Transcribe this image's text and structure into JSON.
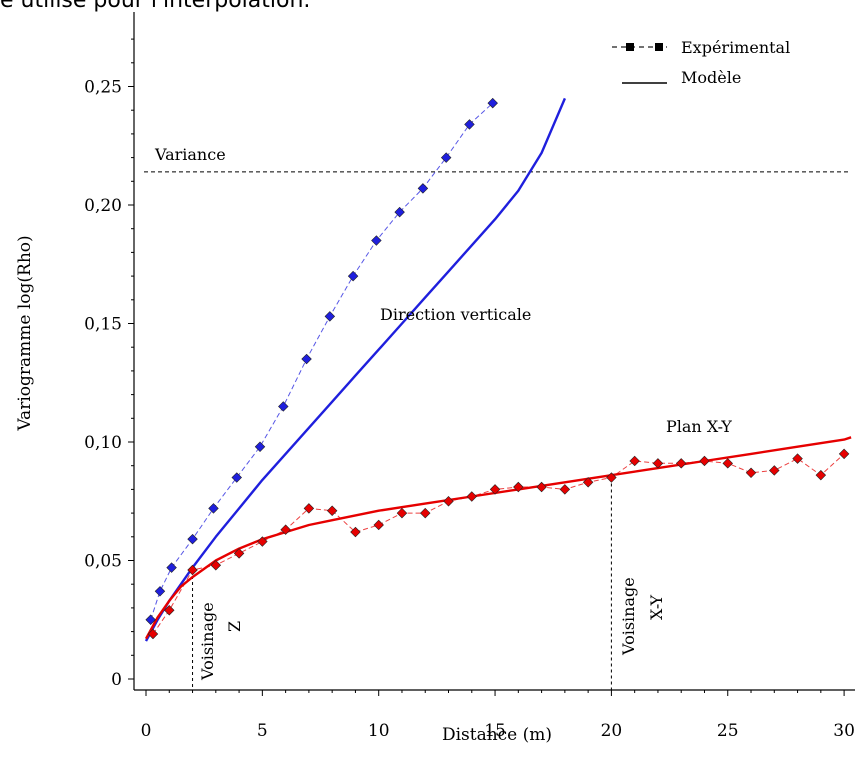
{
  "header": {
    "cut_title": "e utilisé pour l'interpolation."
  },
  "chart_data": {
    "type": "line",
    "xlabel": "Distance (m)",
    "ylabel": "Variogramme log(Rho)",
    "xlim": [
      0,
      30.3
    ],
    "ylim": [
      0,
      0.27
    ],
    "x_ticks": [
      0,
      5,
      10,
      15,
      20,
      25,
      30
    ],
    "x_tick_labels": [
      "0",
      "5",
      "10",
      "15",
      "20",
      "25",
      "30"
    ],
    "y_ticks": [
      0,
      0.05,
      0.1,
      0.15,
      0.2,
      0.25
    ],
    "y_tick_labels": [
      "0",
      "0,05",
      "0,10",
      "0,15",
      "0,20",
      "0,25"
    ],
    "grid": false,
    "legend": {
      "position": "top-right",
      "entries": [
        {
          "label": "Expérimental",
          "style": "dashed-squares"
        },
        {
          "label": "Modèle",
          "style": "solid"
        }
      ]
    },
    "variance": {
      "label": "Variance",
      "y": 0.214
    },
    "series": [
      {
        "label": "Direction verticale",
        "color": "#1f1fdd",
        "experimental": {
          "x": [
            0.2,
            0.6,
            1.1,
            2,
            2.9,
            3.9,
            4.9,
            5.9,
            6.9,
            7.9,
            8.9,
            9.9,
            10.9,
            11.9,
            12.9,
            13.9,
            14.9
          ],
          "y": [
            0.025,
            0.037,
            0.047,
            0.059,
            0.072,
            0.085,
            0.098,
            0.115,
            0.135,
            0.153,
            0.17,
            0.185,
            0.197,
            0.207,
            0.22,
            0.234,
            0.243
          ]
        },
        "model": {
          "x": [
            0,
            0.5,
            1,
            2,
            3,
            4,
            5,
            6,
            7,
            8,
            9,
            10,
            11,
            12,
            13,
            14,
            15,
            16,
            17,
            18
          ],
          "y": [
            0.016,
            0.025,
            0.033,
            0.047,
            0.06,
            0.072,
            0.084,
            0.095,
            0.106,
            0.117,
            0.128,
            0.139,
            0.15,
            0.161,
            0.172,
            0.183,
            0.194,
            0.206,
            0.222,
            0.245
          ]
        }
      },
      {
        "label": "Plan X-Y",
        "color": "#e60000",
        "experimental": {
          "x": [
            0.3,
            1,
            2,
            3,
            4,
            5,
            6,
            7,
            8,
            9,
            10,
            11,
            12,
            13,
            14,
            15,
            16,
            17,
            18,
            19,
            20,
            21,
            22,
            23,
            24,
            25,
            26,
            27,
            28,
            29,
            30
          ],
          "y": [
            0.019,
            0.029,
            0.046,
            0.048,
            0.053,
            0.058,
            0.063,
            0.072,
            0.071,
            0.062,
            0.065,
            0.07,
            0.07,
            0.075,
            0.077,
            0.08,
            0.081,
            0.081,
            0.08,
            0.083,
            0.085,
            0.092,
            0.091,
            0.091,
            0.092,
            0.091,
            0.087,
            0.088,
            0.093,
            0.086,
            0.095
          ]
        },
        "model": {
          "x": [
            0,
            0.5,
            1,
            1.5,
            2,
            3,
            4,
            5,
            6,
            7,
            8,
            10,
            12,
            14,
            16,
            18,
            20,
            22,
            24,
            26,
            28,
            30,
            30.3
          ],
          "y": [
            0.017,
            0.026,
            0.033,
            0.039,
            0.043,
            0.05,
            0.055,
            0.059,
            0.062,
            0.065,
            0.067,
            0.071,
            0.074,
            0.077,
            0.08,
            0.083,
            0.086,
            0.089,
            0.092,
            0.095,
            0.098,
            0.101,
            0.102
          ]
        }
      }
    ],
    "annotations": [
      {
        "text": "Variance"
      },
      {
        "text": "Direction verticale"
      },
      {
        "text": "Plan X-Y"
      },
      {
        "text": "Voisinage",
        "x_line": 2,
        "line_top_y": 0.046
      },
      {
        "text": "Z"
      },
      {
        "text": "Voisinage",
        "x_line": 20,
        "line_top_y": 0.085
      },
      {
        "text": "X-Y"
      }
    ]
  }
}
